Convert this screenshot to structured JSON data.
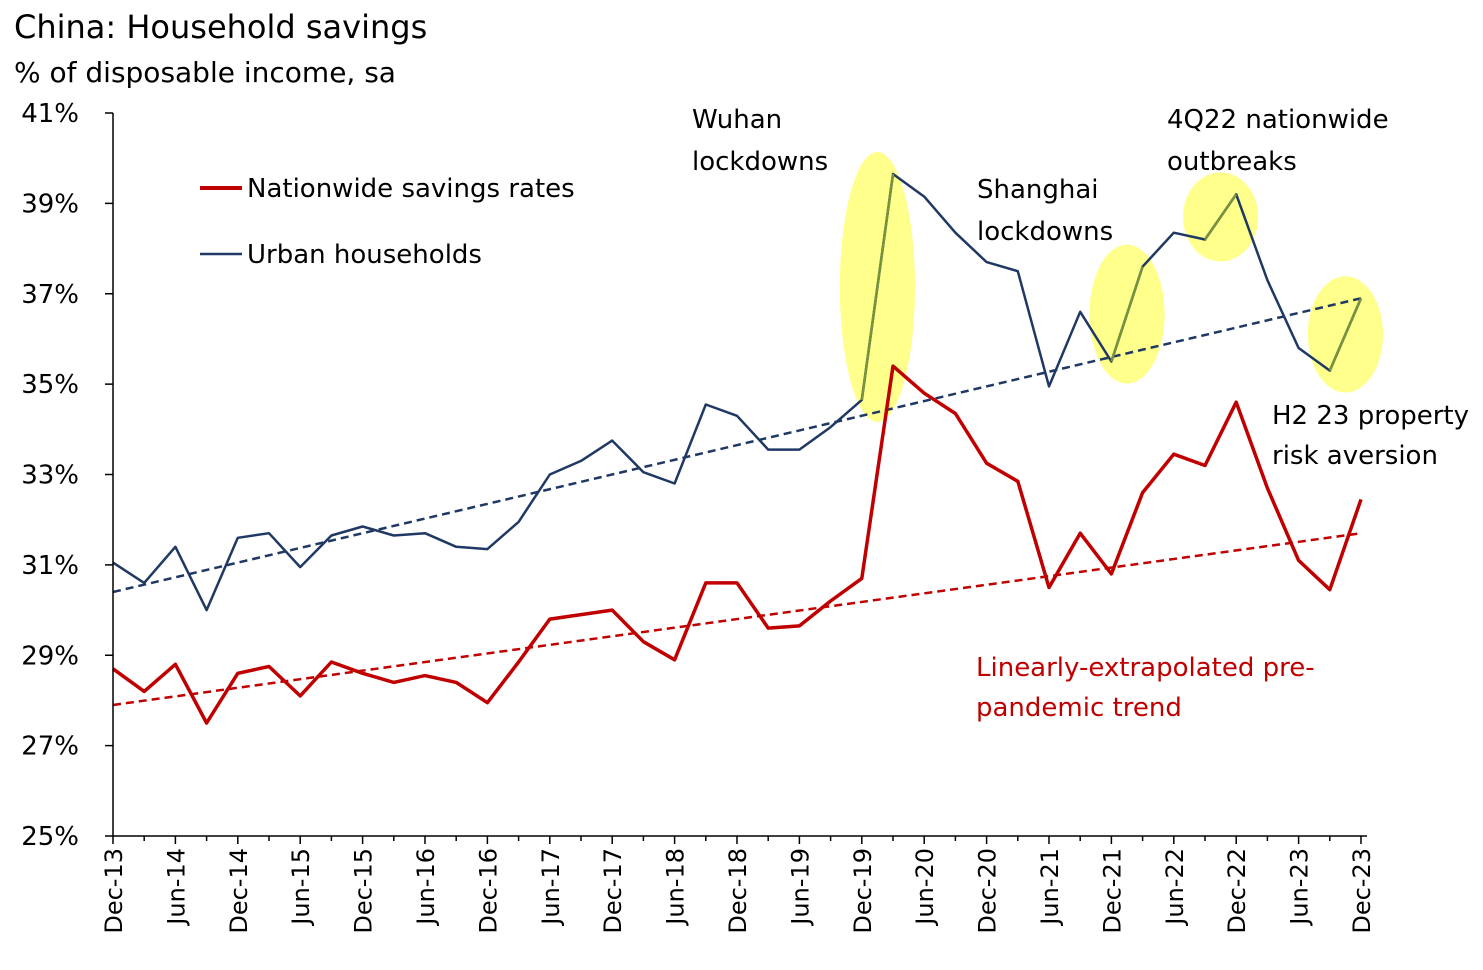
{
  "chart_data": {
    "type": "line",
    "title": "China: Household savings",
    "subtitle": "% of disposable income, sa",
    "ylim": [
      25,
      41
    ],
    "y_ticks": [
      25,
      27,
      29,
      31,
      33,
      35,
      37,
      39,
      41
    ],
    "y_tick_labels": [
      "25%",
      "27%",
      "29%",
      "31%",
      "33%",
      "35%",
      "37%",
      "39%",
      "41%"
    ],
    "x_tick_labels": [
      "Dec-13",
      "Jun-14",
      "Dec-14",
      "Jun-15",
      "Dec-15",
      "Jun-16",
      "Dec-16",
      "Jun-17",
      "Dec-17",
      "Jun-18",
      "Dec-18",
      "Jun-19",
      "Dec-19",
      "Jun-20",
      "Dec-20",
      "Jun-21",
      "Dec-21",
      "Jun-22",
      "Dec-22",
      "Jun-23",
      "Dec-23"
    ],
    "x_quarters": [
      "Q4 2013",
      "Q1 2014",
      "Q2 2014",
      "Q3 2014",
      "Q4 2014",
      "Q1 2015",
      "Q2 2015",
      "Q3 2015",
      "Q4 2015",
      "Q1 2016",
      "Q2 2016",
      "Q3 2016",
      "Q4 2016",
      "Q1 2017",
      "Q2 2017",
      "Q3 2017",
      "Q4 2017",
      "Q1 2018",
      "Q2 2018",
      "Q3 2018",
      "Q4 2018",
      "Q1 2019",
      "Q2 2019",
      "Q3 2019",
      "Q4 2019",
      "Q1 2020",
      "Q2 2020",
      "Q3 2020",
      "Q4 2020",
      "Q1 2021",
      "Q2 2021",
      "Q3 2021",
      "Q4 2021",
      "Q1 2022",
      "Q2 2022",
      "Q3 2022",
      "Q4 2022",
      "Q1 2023",
      "Q2 2023",
      "Q3 2023",
      "Q4 2023"
    ],
    "series": [
      {
        "name": "Nationwide savings rates",
        "color": "#c00000",
        "values": [
          28.7,
          28.2,
          28.8,
          27.5,
          28.6,
          28.75,
          28.1,
          28.85,
          28.6,
          28.4,
          28.55,
          28.4,
          27.95,
          28.85,
          29.8,
          29.9,
          30.0,
          29.3,
          28.9,
          30.6,
          30.6,
          29.6,
          29.65,
          30.2,
          30.7,
          35.4,
          34.8,
          34.35,
          33.25,
          32.85,
          30.5,
          31.7,
          30.8,
          32.6,
          33.45,
          33.2,
          34.6,
          32.7,
          31.1,
          30.45,
          32.45
        ]
      },
      {
        "name": "Urban households",
        "color": "#1f3864",
        "values": [
          31.05,
          30.6,
          31.4,
          30.0,
          31.6,
          31.7,
          30.95,
          31.65,
          31.85,
          31.65,
          31.7,
          31.4,
          31.35,
          31.95,
          33.0,
          33.3,
          33.75,
          33.05,
          32.8,
          34.55,
          34.3,
          33.55,
          33.55,
          34.05,
          34.65,
          39.65,
          39.15,
          38.35,
          37.7,
          37.5,
          34.95,
          36.6,
          35.5,
          37.6,
          38.35,
          38.2,
          39.2,
          37.3,
          35.8,
          35.3,
          36.9
        ]
      }
    ],
    "trendlines": [
      {
        "name": "Urban households trend",
        "color": "#1f3864",
        "start": [
          0,
          30.4
        ],
        "end": [
          40,
          36.9
        ]
      },
      {
        "name": "Linearly-extrapolated pre-pandemic trend",
        "color": "#c00000",
        "start": [
          0,
          27.9
        ],
        "end": [
          40,
          31.7
        ]
      }
    ],
    "highlights": [
      {
        "name": "Wuhan lockdowns",
        "start_index": 24,
        "end_index": 25
      },
      {
        "name": "Shanghai lockdowns",
        "start_index": 32,
        "end_index": 33
      },
      {
        "name": "4Q22 nationwide outbreaks",
        "start_index": 35,
        "end_index": 36
      },
      {
        "name": "H2 23 property risk aversion",
        "start_index": 39,
        "end_index": 40
      }
    ],
    "annotations": {
      "wuhan": [
        "Wuhan",
        "lockdowns"
      ],
      "shanghai": [
        "Shanghai",
        "lockdowns"
      ],
      "outbreaks": [
        "4Q22 nationwide",
        "outbreaks"
      ],
      "property": [
        "H2 23 property",
        "risk aversion"
      ],
      "trend": [
        "Linearly-extrapolated pre-",
        "pandemic trend"
      ]
    },
    "legend": {
      "placement": "top-left",
      "entries": [
        "Nationwide savings rates",
        "Urban households"
      ]
    }
  },
  "colors": {
    "nationwide": "#c00000",
    "urban": "#1f3864",
    "highlight": "#ffff66",
    "highlight_line": "#77933c",
    "axis": "#000000"
  }
}
